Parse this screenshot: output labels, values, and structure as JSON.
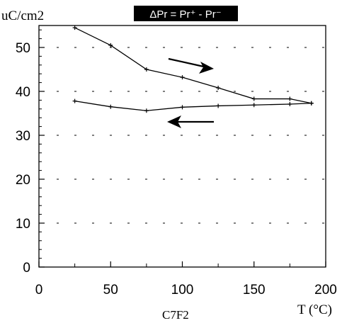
{
  "chart_data": {
    "type": "line",
    "title": "ΔPr = Pr⁺ - Pr⁻",
    "ylabel": "uC/cm2",
    "xlabel": "T (°C)",
    "caption": "C7F2",
    "xlim": [
      0,
      200
    ],
    "ylim": [
      0,
      55
    ],
    "xticks": [
      "0",
      "50",
      "100",
      "150",
      "200"
    ],
    "yticks": [
      "0",
      "10",
      "20",
      "30",
      "40",
      "50"
    ],
    "grid": "dashed-horizontal",
    "series": [
      {
        "x": [
          25,
          50,
          75,
          100,
          125,
          150,
          175,
          190
        ],
        "y": [
          54.5,
          50.5,
          45,
          43.2,
          40.8,
          38.3,
          38.3,
          37.3
        ]
      },
      {
        "x": [
          25,
          50,
          75,
          100,
          125,
          150,
          175,
          190
        ],
        "y": [
          37.8,
          36.5,
          35.6,
          36.4,
          36.7,
          36.9,
          37.1,
          37.3
        ]
      }
    ],
    "arrows": [
      {
        "direction": "right",
        "color": "#000000"
      },
      {
        "direction": "left",
        "color": "#000000"
      }
    ]
  }
}
